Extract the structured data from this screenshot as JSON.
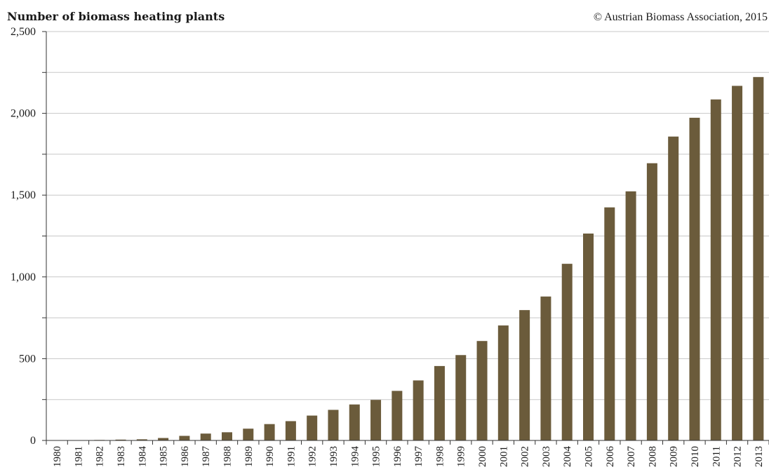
{
  "header": {
    "title": "Number of biomass heating plants",
    "credit": "© Austrian Biomass Association, 2015"
  },
  "colors": {
    "bar": "#6b5b3b",
    "grid": "#c8c8c8",
    "axis": "#333333"
  },
  "chart_data": {
    "type": "bar",
    "title": "Number of biomass heating plants",
    "xlabel": "",
    "ylabel": "",
    "ylim": [
      0,
      2500
    ],
    "yticks": [
      0,
      500,
      1000,
      1500,
      2000,
      2500
    ],
    "ytick_labels": [
      "0",
      "500",
      "1,000",
      "1,500",
      "2,000",
      "2,500"
    ],
    "grid": true,
    "categories": [
      "1980",
      "1981",
      "1982",
      "1983",
      "1984",
      "1985",
      "1986",
      "1987",
      "1988",
      "1989",
      "1990",
      "1991",
      "1992",
      "1993",
      "1994",
      "1995",
      "1996",
      "1997",
      "1998",
      "1999",
      "2000",
      "2001",
      "2002",
      "2003",
      "2004",
      "2005",
      "2006",
      "2007",
      "2008",
      "2009",
      "2010",
      "2011",
      "2012",
      "2013"
    ],
    "values": [
      1,
      2,
      3,
      5,
      7,
      15,
      28,
      42,
      50,
      72,
      100,
      118,
      152,
      187,
      220,
      248,
      303,
      367,
      455,
      522,
      608,
      703,
      797,
      880,
      1080,
      1265,
      1425,
      1523,
      1695,
      1858,
      1973,
      2085,
      2168,
      2222
    ]
  }
}
